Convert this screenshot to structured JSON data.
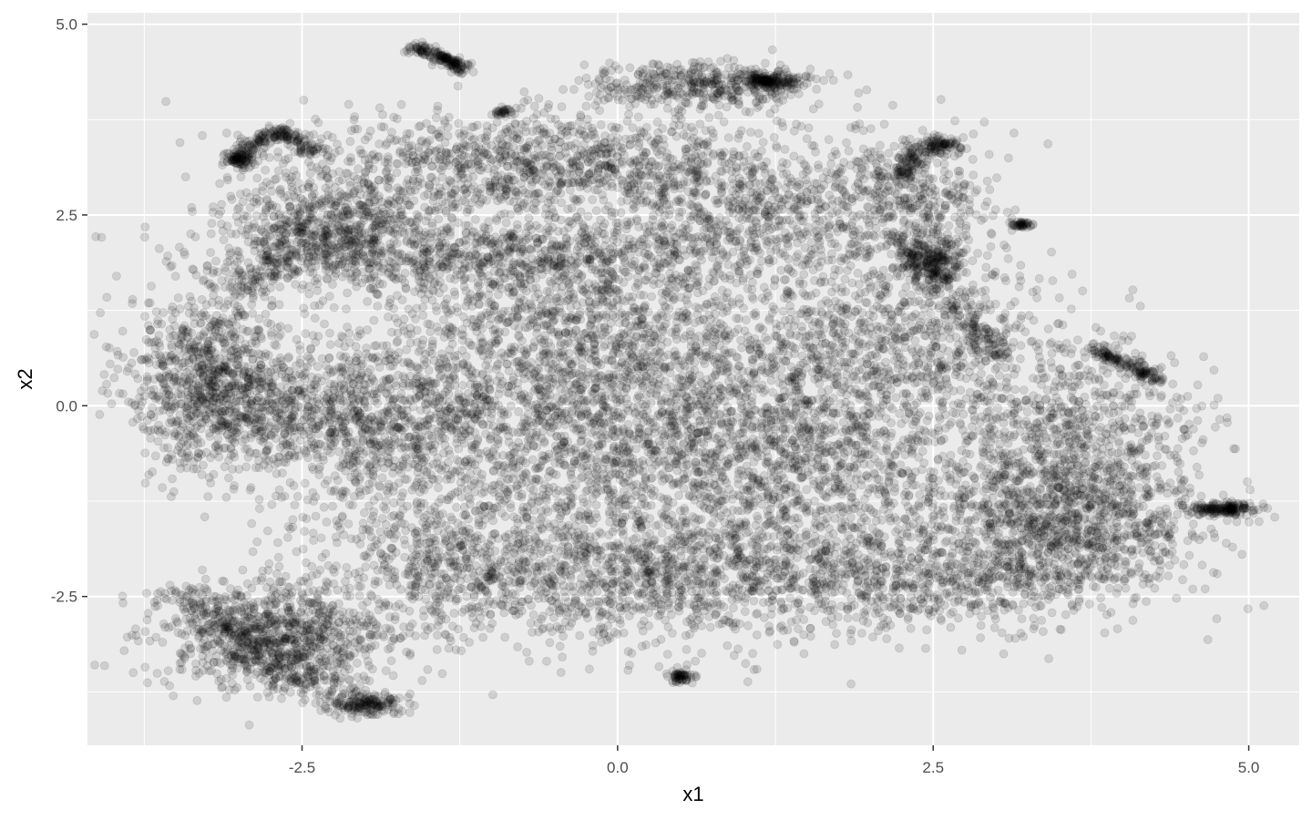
{
  "chart_data": {
    "type": "scatter",
    "title": "",
    "xlabel": "x1",
    "ylabel": "x2",
    "xlim": [
      -4.2,
      5.4
    ],
    "ylim": [
      -4.45,
      5.15
    ],
    "x_ticks": [
      -2.5,
      0.0,
      2.5,
      5.0
    ],
    "x_tick_labels": [
      "-2.5",
      "0.0",
      "2.5",
      "5.0"
    ],
    "y_ticks": [
      -2.5,
      0.0,
      2.5,
      5.0
    ],
    "y_tick_labels": [
      "-2.5",
      "0.0",
      "2.5",
      "5.0"
    ],
    "x_minor_ticks": [
      -3.75,
      -1.25,
      1.25,
      3.75
    ],
    "y_minor_ticks": [
      -3.75,
      -1.25,
      1.25,
      3.75
    ],
    "grid": true,
    "point_color": "#000000",
    "point_alpha": 0.12,
    "panel_background": "#ebebeb",
    "grid_color": "#ffffff",
    "series": [
      {
        "values": [
          [
            -3.7,
            0.2
          ],
          [
            -3.6,
            0.3
          ],
          [
            -3.5,
            0.6
          ],
          [
            -3.4,
            0.9
          ],
          [
            -3.3,
            0.7
          ],
          [
            -3.2,
            0.5
          ],
          [
            -3.1,
            0.1
          ],
          [
            -3.3,
            -0.3
          ],
          [
            -3.2,
            -0.9
          ],
          [
            -3.1,
            -1.2
          ],
          [
            -3.0,
            3.25
          ],
          [
            -3.05,
            3.2
          ],
          [
            -2.9,
            3.4
          ],
          [
            -2.7,
            3.55
          ],
          [
            -2.6,
            3.5
          ],
          [
            -2.5,
            3.3
          ],
          [
            -2.7,
            2.6
          ],
          [
            -2.5,
            2.4
          ],
          [
            -2.3,
            2.0
          ],
          [
            -2.1,
            1.9
          ],
          [
            -1.8,
            1.8
          ],
          [
            -1.5,
            1.9
          ],
          [
            -1.2,
            2.0
          ],
          [
            -0.9,
            1.95
          ],
          [
            -0.6,
            1.8
          ],
          [
            -0.4,
            2.1
          ],
          [
            -0.2,
            2.2
          ],
          [
            0.0,
            2.3
          ],
          [
            0.2,
            2.1
          ],
          [
            0.4,
            1.9
          ],
          [
            -1.4,
            4.6
          ],
          [
            -1.35,
            4.55
          ],
          [
            -1.3,
            4.5
          ],
          [
            -1.2,
            4.4
          ],
          [
            -0.9,
            3.85
          ],
          [
            -1.6,
            3.2
          ],
          [
            -1.2,
            3.4
          ],
          [
            -0.8,
            3.5
          ],
          [
            -0.4,
            3.6
          ],
          [
            0.0,
            3.4
          ],
          [
            0.2,
            4.35
          ],
          [
            0.3,
            4.3
          ],
          [
            0.5,
            4.1
          ],
          [
            0.8,
            4.2
          ],
          [
            1.1,
            4.3
          ],
          [
            1.2,
            4.25
          ],
          [
            1.3,
            4.2
          ],
          [
            1.4,
            3.6
          ],
          [
            1.5,
            3.5
          ],
          [
            1.0,
            3.2
          ],
          [
            0.8,
            2.9
          ],
          [
            1.2,
            2.3
          ],
          [
            1.4,
            2.6
          ],
          [
            1.7,
            2.7
          ],
          [
            2.0,
            2.5
          ],
          [
            2.3,
            3.1
          ],
          [
            2.25,
            2.9
          ],
          [
            2.5,
            3.4
          ],
          [
            2.6,
            3.45
          ],
          [
            2.7,
            3.3
          ],
          [
            2.4,
            2.1
          ],
          [
            2.5,
            1.85
          ],
          [
            2.6,
            1.9
          ],
          [
            3.2,
            2.4
          ],
          [
            2.9,
            1.3
          ],
          [
            3.8,
            0.7
          ],
          [
            3.95,
            0.6
          ],
          [
            4.1,
            0.5
          ],
          [
            4.25,
            0.35
          ],
          [
            4.3,
            0.3
          ],
          [
            2.7,
            0.8
          ],
          [
            2.4,
            1.0
          ],
          [
            2.2,
            0.9
          ],
          [
            2.6,
            0.5
          ],
          [
            2.5,
            0.4
          ],
          [
            -2.8,
            -2.6
          ],
          [
            -2.6,
            -2.9
          ],
          [
            -2.4,
            -3.1
          ],
          [
            -2.2,
            -3.3
          ],
          [
            -2.9,
            -3.2
          ],
          [
            -3.2,
            -2.5
          ],
          [
            -3.3,
            -2.6
          ],
          [
            -2.8,
            -3.6
          ],
          [
            -2.0,
            -3.9
          ],
          [
            -1.8,
            -3.85
          ],
          [
            -1.6,
            -2.1
          ],
          [
            -1.4,
            -2.2
          ],
          [
            -1.0,
            -2.2
          ],
          [
            -0.6,
            -2.3
          ],
          [
            -0.4,
            -1.6
          ],
          [
            0.0,
            -1.8
          ],
          [
            0.3,
            -2.2
          ],
          [
            0.5,
            -3.55
          ],
          [
            0.8,
            -1.3
          ],
          [
            1.4,
            -3.1
          ],
          [
            0.9,
            -0.2
          ],
          [
            1.0,
            -0.1
          ],
          [
            1.3,
            0.1
          ],
          [
            1.5,
            -0.3
          ],
          [
            1.7,
            -0.6
          ],
          [
            -0.7,
            0.4
          ],
          [
            -0.6,
            1.2
          ],
          [
            -0.3,
            -0.3
          ],
          [
            0.2,
            -0.5
          ],
          [
            0.6,
            0.3
          ],
          [
            -1.8,
            0.7
          ],
          [
            -2.0,
            0.2
          ],
          [
            -2.3,
            -0.4
          ],
          [
            -1.5,
            -0.8
          ],
          [
            -1.0,
            -1.1
          ],
          [
            3.0,
            -1.5
          ],
          [
            3.2,
            -1.6
          ],
          [
            3.4,
            -1.2
          ],
          [
            3.6,
            -1.4
          ],
          [
            3.8,
            -1.7
          ],
          [
            3.9,
            -1.0
          ],
          [
            3.7,
            -2.2
          ],
          [
            3.5,
            -2.4
          ],
          [
            3.1,
            -2.1
          ],
          [
            2.8,
            -1.3
          ],
          [
            4.7,
            -1.35
          ],
          [
            4.8,
            -1.37
          ],
          [
            4.85,
            -1.35
          ],
          [
            4.6,
            -1.3
          ],
          [
            4.2,
            -1.2
          ],
          [
            2.3,
            -2.8
          ],
          [
            2.5,
            -2.7
          ],
          [
            2.8,
            -2.6
          ],
          [
            3.3,
            -2.5
          ],
          [
            3.6,
            -2.6
          ],
          [
            -0.8,
            2.8
          ],
          [
            -0.2,
            2.7
          ],
          [
            0.3,
            2.6
          ],
          [
            1.5,
            2.8
          ],
          [
            -2.2,
            2.8
          ]
        ]
      }
    ],
    "clusters": [
      {
        "cx": -3.2,
        "cy": 0.35,
        "sx": 0.35,
        "sy": 0.55,
        "n": 900
      },
      {
        "cx": -2.2,
        "cy": -0.1,
        "sx": 0.6,
        "sy": 0.45,
        "n": 700
      },
      {
        "cx": -2.7,
        "cy": -3.05,
        "sx": 0.45,
        "sy": 0.35,
        "n": 800
      },
      {
        "cx": -2.0,
        "cy": -3.9,
        "sx": 0.15,
        "sy": 0.08,
        "n": 180
      },
      {
        "cx": -3.0,
        "cy": 3.25,
        "sx": 0.06,
        "sy": 0.06,
        "n": 80
      },
      {
        "cx": -2.4,
        "cy": 2.4,
        "sx": 0.35,
        "sy": 0.4,
        "n": 500
      },
      {
        "cx": -1.0,
        "cy": 2.0,
        "sx": 1.1,
        "sy": 0.25,
        "n": 900
      },
      {
        "cx": -0.6,
        "cy": 3.25,
        "sx": 1.0,
        "sy": 0.3,
        "n": 900
      },
      {
        "cx": 0.65,
        "cy": 4.2,
        "sx": 0.45,
        "sy": 0.15,
        "n": 400
      },
      {
        "cx": 1.2,
        "cy": 4.25,
        "sx": 0.12,
        "sy": 0.06,
        "n": 160
      },
      {
        "cx": 1.0,
        "cy": 2.5,
        "sx": 0.6,
        "sy": 0.4,
        "n": 600
      },
      {
        "cx": -0.6,
        "cy": 1.0,
        "sx": 0.7,
        "sy": 0.6,
        "n": 800
      },
      {
        "cx": 0.6,
        "cy": 0.6,
        "sx": 0.8,
        "sy": 0.6,
        "n": 800
      },
      {
        "cx": -1.4,
        "cy": -0.5,
        "sx": 0.8,
        "sy": 0.7,
        "n": 900
      },
      {
        "cx": 0.4,
        "cy": -0.6,
        "sx": 0.8,
        "sy": 0.6,
        "n": 900
      },
      {
        "cx": -1.0,
        "cy": -2.2,
        "sx": 0.8,
        "sy": 0.5,
        "n": 900
      },
      {
        "cx": 0.6,
        "cy": -2.2,
        "sx": 0.7,
        "sy": 0.45,
        "n": 800
      },
      {
        "cx": 1.7,
        "cy": -0.9,
        "sx": 0.6,
        "sy": 0.6,
        "n": 700
      },
      {
        "cx": 2.2,
        "cy": 0.8,
        "sx": 0.6,
        "sy": 0.55,
        "n": 700
      },
      {
        "cx": 2.3,
        "cy": 2.6,
        "sx": 0.35,
        "sy": 0.5,
        "n": 450
      },
      {
        "cx": 2.5,
        "cy": 1.9,
        "sx": 0.12,
        "sy": 0.15,
        "n": 200
      },
      {
        "cx": 3.5,
        "cy": -1.5,
        "sx": 0.55,
        "sy": 0.55,
        "n": 1300
      },
      {
        "cx": 2.4,
        "cy": -2.3,
        "sx": 0.7,
        "sy": 0.35,
        "n": 600
      },
      {
        "cx": 3.6,
        "cy": -0.2,
        "sx": 0.5,
        "sy": 0.5,
        "n": 500
      },
      {
        "cx": 4.8,
        "cy": -1.35,
        "sx": 0.12,
        "sy": 0.04,
        "n": 160
      },
      {
        "cx": 0.5,
        "cy": -3.55,
        "sx": 0.05,
        "sy": 0.04,
        "n": 60
      },
      {
        "cx": 3.2,
        "cy": 2.38,
        "sx": 0.04,
        "sy": 0.03,
        "n": 40
      },
      {
        "cx": -0.9,
        "cy": 3.85,
        "sx": 0.04,
        "sy": 0.03,
        "n": 30
      }
    ],
    "arcs": [
      {
        "points": [
          [
            -1.6,
            4.7
          ],
          [
            -1.45,
            4.6
          ],
          [
            -1.3,
            4.5
          ],
          [
            -1.2,
            4.4
          ]
        ],
        "n": 160,
        "spread": 0.04
      },
      {
        "points": [
          [
            -3.0,
            3.1
          ],
          [
            -2.9,
            3.45
          ],
          [
            -2.7,
            3.6
          ],
          [
            -2.55,
            3.5
          ],
          [
            -2.4,
            3.3
          ]
        ],
        "n": 180,
        "spread": 0.05
      },
      {
        "points": [
          [
            2.25,
            2.9
          ],
          [
            2.35,
            3.3
          ],
          [
            2.5,
            3.45
          ],
          [
            2.7,
            3.4
          ]
        ],
        "n": 160,
        "spread": 0.05
      },
      {
        "points": [
          [
            3.75,
            0.75
          ],
          [
            3.95,
            0.6
          ],
          [
            4.15,
            0.45
          ],
          [
            4.3,
            0.32
          ]
        ],
        "n": 140,
        "spread": 0.04
      },
      {
        "points": [
          [
            -3.5,
            -2.4
          ],
          [
            -3.2,
            -2.8
          ],
          [
            -2.9,
            -3.2
          ],
          [
            -2.6,
            -3.5
          ],
          [
            -2.2,
            -3.7
          ]
        ],
        "n": 300,
        "spread": 0.12
      },
      {
        "points": [
          [
            2.2,
            2.2
          ],
          [
            2.4,
            1.8
          ],
          [
            2.7,
            1.3
          ],
          [
            2.9,
            0.9
          ],
          [
            3.0,
            0.6
          ]
        ],
        "n": 220,
        "spread": 0.1
      },
      {
        "points": [
          [
            -3.1,
            1.4
          ],
          [
            -2.6,
            2.0
          ],
          [
            -1.8,
            2.5
          ],
          [
            -0.8,
            2.9
          ],
          [
            0.4,
            3.0
          ]
        ],
        "n": 400,
        "spread": 0.15
      }
    ]
  }
}
